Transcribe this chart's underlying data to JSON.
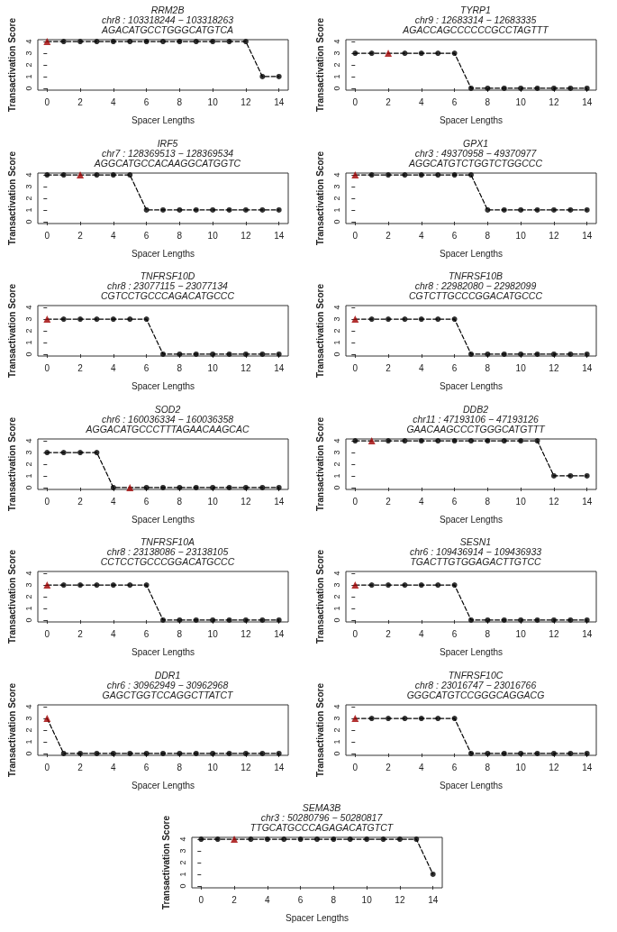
{
  "chart_data": [
    {
      "type": "line",
      "title": "RRM2B",
      "subtitle": "chr8 : 103318244 − 103318263\nAGACATGCCTGGGCATGTCA",
      "xlabel": "Spacer Lengths",
      "ylabel": "Transactivation Score",
      "x": [
        0,
        1,
        2,
        3,
        4,
        5,
        6,
        7,
        8,
        9,
        10,
        11,
        12,
        13,
        14
      ],
      "xlim": [
        -0.56,
        14.56
      ],
      "xticks": [
        0,
        2,
        4,
        6,
        8,
        10,
        12,
        14
      ],
      "ylim": [
        -0.16,
        4.16
      ],
      "yticks": [
        0,
        1,
        2,
        3,
        4
      ],
      "grid": false,
      "series": [
        {
          "type": "line",
          "color": "#000000",
          "line_style": "dashed",
          "marker": "none",
          "values": [
            4,
            4,
            4,
            4,
            4,
            4,
            4,
            4,
            4,
            4,
            4,
            4,
            4,
            1,
            1
          ]
        },
        {
          "type": "scatter",
          "color": "#000000",
          "marker": "circle",
          "x": [
            1,
            2,
            3,
            4,
            5,
            6,
            7,
            8,
            9,
            10,
            11,
            12,
            13,
            14
          ],
          "values": [
            4,
            4,
            4,
            4,
            4,
            4,
            4,
            4,
            4,
            4,
            4,
            4,
            1,
            1
          ]
        },
        {
          "type": "scatter",
          "color": "#a00000",
          "marker": "triangle",
          "x": [
            0
          ],
          "values": [
            4
          ]
        }
      ]
    },
    {
      "type": "line",
      "title": "TYRP1",
      "subtitle": "chr9 : 12683314 − 12683335\nAGACCAGCCCCCCGCCTAGTTT",
      "xlabel": "Spacer Lengths",
      "ylabel": "Transactivation Score",
      "x": [
        0,
        1,
        2,
        3,
        4,
        5,
        6,
        7,
        8,
        9,
        10,
        11,
        12,
        13,
        14
      ],
      "xlim": [
        -0.56,
        14.56
      ],
      "xticks": [
        0,
        2,
        4,
        6,
        8,
        10,
        12,
        14
      ],
      "ylim": [
        -0.16,
        4.16
      ],
      "yticks": [
        0,
        1,
        2,
        3,
        4
      ],
      "grid": false,
      "series": [
        {
          "type": "line",
          "color": "#000000",
          "line_style": "dashed",
          "marker": "none",
          "values": [
            3,
            3,
            3,
            3,
            3,
            3,
            3,
            0,
            0,
            0,
            0,
            0,
            0,
            0,
            0
          ]
        },
        {
          "type": "scatter",
          "color": "#000000",
          "marker": "circle",
          "x": [
            0,
            1,
            3,
            4,
            5,
            6,
            7,
            8,
            9,
            10,
            11,
            12,
            13,
            14
          ],
          "values": [
            3,
            3,
            3,
            3,
            3,
            3,
            0,
            0,
            0,
            0,
            0,
            0,
            0,
            0
          ]
        },
        {
          "type": "scatter",
          "color": "#a00000",
          "marker": "triangle",
          "x": [
            2
          ],
          "values": [
            3
          ]
        }
      ]
    },
    {
      "type": "line",
      "title": "IRF5",
      "subtitle": "chr7 : 128369513 − 128369534\nAGGCATGCCACAAGGCATGGTC",
      "xlabel": "Spacer Lengths",
      "ylabel": "Transactivation Score",
      "x": [
        0,
        1,
        2,
        3,
        4,
        5,
        6,
        7,
        8,
        9,
        10,
        11,
        12,
        13,
        14
      ],
      "xlim": [
        -0.56,
        14.56
      ],
      "xticks": [
        0,
        2,
        4,
        6,
        8,
        10,
        12,
        14
      ],
      "ylim": [
        -0.16,
        4.16
      ],
      "yticks": [
        0,
        1,
        2,
        3,
        4
      ],
      "grid": false,
      "series": [
        {
          "type": "line",
          "color": "#000000",
          "line_style": "dashed",
          "marker": "none",
          "values": [
            4,
            4,
            4,
            4,
            4,
            4,
            1,
            1,
            1,
            1,
            1,
            1,
            1,
            1,
            1
          ]
        },
        {
          "type": "scatter",
          "color": "#000000",
          "marker": "circle",
          "x": [
            0,
            1,
            3,
            4,
            5,
            6,
            7,
            8,
            9,
            10,
            11,
            12,
            13,
            14
          ],
          "values": [
            4,
            4,
            4,
            4,
            4,
            1,
            1,
            1,
            1,
            1,
            1,
            1,
            1,
            1
          ]
        },
        {
          "type": "scatter",
          "color": "#a00000",
          "marker": "triangle",
          "x": [
            2
          ],
          "values": [
            4
          ]
        }
      ]
    },
    {
      "type": "line",
      "title": "GPX1",
      "subtitle": "chr3 : 49370958 − 49370977\nAGGCATGTCTGGTCTGGCCC",
      "xlabel": "Spacer Lengths",
      "ylabel": "Transactivation Score",
      "x": [
        0,
        1,
        2,
        3,
        4,
        5,
        6,
        7,
        8,
        9,
        10,
        11,
        12,
        13,
        14
      ],
      "xlim": [
        -0.56,
        14.56
      ],
      "xticks": [
        0,
        2,
        4,
        6,
        8,
        10,
        12,
        14
      ],
      "ylim": [
        -0.16,
        4.16
      ],
      "yticks": [
        0,
        1,
        2,
        3,
        4
      ],
      "grid": false,
      "series": [
        {
          "type": "line",
          "color": "#000000",
          "line_style": "dashed",
          "marker": "none",
          "values": [
            4,
            4,
            4,
            4,
            4,
            4,
            4,
            4,
            1,
            1,
            1,
            1,
            1,
            1,
            1
          ]
        },
        {
          "type": "scatter",
          "color": "#000000",
          "marker": "circle",
          "x": [
            1,
            2,
            3,
            4,
            5,
            6,
            7,
            8,
            9,
            10,
            11,
            12,
            13,
            14
          ],
          "values": [
            4,
            4,
            4,
            4,
            4,
            4,
            4,
            1,
            1,
            1,
            1,
            1,
            1,
            1
          ]
        },
        {
          "type": "scatter",
          "color": "#a00000",
          "marker": "triangle",
          "x": [
            0
          ],
          "values": [
            4
          ]
        }
      ]
    },
    {
      "type": "line",
      "title": "TNFRSF10D",
      "subtitle": "chr8 : 23077115 − 23077134\nCGTCCTGCCCAGACATGCCC",
      "xlabel": "Spacer Lengths",
      "ylabel": "Transactivation Score",
      "x": [
        0,
        1,
        2,
        3,
        4,
        5,
        6,
        7,
        8,
        9,
        10,
        11,
        12,
        13,
        14
      ],
      "xlim": [
        -0.56,
        14.56
      ],
      "xticks": [
        0,
        2,
        4,
        6,
        8,
        10,
        12,
        14
      ],
      "ylim": [
        -0.16,
        4.16
      ],
      "yticks": [
        0,
        1,
        2,
        3,
        4
      ],
      "grid": false,
      "series": [
        {
          "type": "line",
          "color": "#000000",
          "line_style": "dashed",
          "marker": "none",
          "values": [
            3,
            3,
            3,
            3,
            3,
            3,
            3,
            0,
            0,
            0,
            0,
            0,
            0,
            0,
            0
          ]
        },
        {
          "type": "scatter",
          "color": "#000000",
          "marker": "circle",
          "x": [
            1,
            2,
            3,
            4,
            5,
            6,
            7,
            8,
            9,
            10,
            11,
            12,
            13,
            14
          ],
          "values": [
            3,
            3,
            3,
            3,
            3,
            3,
            0,
            0,
            0,
            0,
            0,
            0,
            0,
            0
          ]
        },
        {
          "type": "scatter",
          "color": "#a00000",
          "marker": "triangle",
          "x": [
            0
          ],
          "values": [
            3
          ]
        }
      ]
    },
    {
      "type": "line",
      "title": "TNFRSF10B",
      "subtitle": "chr8 : 22982080 − 22982099\nCGTCTTGCCCGGACATGCCC",
      "xlabel": "Spacer Lengths",
      "ylabel": "Transactivation Score",
      "x": [
        0,
        1,
        2,
        3,
        4,
        5,
        6,
        7,
        8,
        9,
        10,
        11,
        12,
        13,
        14
      ],
      "xlim": [
        -0.56,
        14.56
      ],
      "xticks": [
        0,
        2,
        4,
        6,
        8,
        10,
        12,
        14
      ],
      "ylim": [
        -0.16,
        4.16
      ],
      "yticks": [
        0,
        1,
        2,
        3,
        4
      ],
      "grid": false,
      "series": [
        {
          "type": "line",
          "color": "#000000",
          "line_style": "dashed",
          "marker": "none",
          "values": [
            3,
            3,
            3,
            3,
            3,
            3,
            3,
            0,
            0,
            0,
            0,
            0,
            0,
            0,
            0
          ]
        },
        {
          "type": "scatter",
          "color": "#000000",
          "marker": "circle",
          "x": [
            1,
            2,
            3,
            4,
            5,
            6,
            7,
            8,
            9,
            10,
            11,
            12,
            13,
            14
          ],
          "values": [
            3,
            3,
            3,
            3,
            3,
            3,
            0,
            0,
            0,
            0,
            0,
            0,
            0,
            0
          ]
        },
        {
          "type": "scatter",
          "color": "#a00000",
          "marker": "triangle",
          "x": [
            0
          ],
          "values": [
            3
          ]
        }
      ]
    },
    {
      "type": "line",
      "title": "SOD2",
      "subtitle": "chr6 : 160036334 − 160036358\nAGGACATGCCCTTTAGAACAAGCAC",
      "xlabel": "Spacer Lengths",
      "ylabel": "Transactivation Score",
      "x": [
        0,
        1,
        2,
        3,
        4,
        5,
        6,
        7,
        8,
        9,
        10,
        11,
        12,
        13,
        14
      ],
      "xlim": [
        -0.56,
        14.56
      ],
      "xticks": [
        0,
        2,
        4,
        6,
        8,
        10,
        12,
        14
      ],
      "ylim": [
        -0.16,
        4.16
      ],
      "yticks": [
        0,
        1,
        2,
        3,
        4
      ],
      "grid": false,
      "series": [
        {
          "type": "line",
          "color": "#000000",
          "line_style": "dashed",
          "marker": "none",
          "values": [
            3,
            3,
            3,
            3,
            0,
            0,
            0,
            0,
            0,
            0,
            0,
            0,
            0,
            0,
            0
          ]
        },
        {
          "type": "scatter",
          "color": "#000000",
          "marker": "circle",
          "x": [
            0,
            1,
            2,
            3,
            4,
            6,
            7,
            8,
            9,
            10,
            11,
            12,
            13,
            14
          ],
          "values": [
            3,
            3,
            3,
            3,
            0,
            0,
            0,
            0,
            0,
            0,
            0,
            0,
            0,
            0
          ]
        },
        {
          "type": "scatter",
          "color": "#a00000",
          "marker": "triangle",
          "x": [
            5
          ],
          "values": [
            0
          ]
        }
      ]
    },
    {
      "type": "line",
      "title": "DDB2",
      "subtitle": "chr11 : 47193106 − 47193126\nGAACAAGCCCTGGGCATGTTT",
      "xlabel": "Spacer Lengths",
      "ylabel": "Transactivation Score",
      "x": [
        0,
        1,
        2,
        3,
        4,
        5,
        6,
        7,
        8,
        9,
        10,
        11,
        12,
        13,
        14
      ],
      "xlim": [
        -0.56,
        14.56
      ],
      "xticks": [
        0,
        2,
        4,
        6,
        8,
        10,
        12,
        14
      ],
      "ylim": [
        -0.16,
        4.16
      ],
      "yticks": [
        0,
        1,
        2,
        3,
        4
      ],
      "grid": false,
      "series": [
        {
          "type": "line",
          "color": "#000000",
          "line_style": "dashed",
          "marker": "none",
          "values": [
            4,
            4,
            4,
            4,
            4,
            4,
            4,
            4,
            4,
            4,
            4,
            4,
            1,
            1,
            1
          ]
        },
        {
          "type": "scatter",
          "color": "#000000",
          "marker": "circle",
          "x": [
            0,
            2,
            3,
            4,
            5,
            6,
            7,
            8,
            9,
            10,
            11,
            12,
            13,
            14
          ],
          "values": [
            4,
            4,
            4,
            4,
            4,
            4,
            4,
            4,
            4,
            4,
            4,
            1,
            1,
            1
          ]
        },
        {
          "type": "scatter",
          "color": "#a00000",
          "marker": "triangle",
          "x": [
            1
          ],
          "values": [
            4
          ]
        }
      ]
    },
    {
      "type": "line",
      "title": "TNFRSF10A",
      "subtitle": "chr8 : 23138086 − 23138105\nCCTCCTGCCCGGACATGCCC",
      "xlabel": "Spacer Lengths",
      "ylabel": "Transactivation Score",
      "x": [
        0,
        1,
        2,
        3,
        4,
        5,
        6,
        7,
        8,
        9,
        10,
        11,
        12,
        13,
        14
      ],
      "xlim": [
        -0.56,
        14.56
      ],
      "xticks": [
        0,
        2,
        4,
        6,
        8,
        10,
        12,
        14
      ],
      "ylim": [
        -0.16,
        4.16
      ],
      "yticks": [
        0,
        1,
        2,
        3,
        4
      ],
      "grid": false,
      "series": [
        {
          "type": "line",
          "color": "#000000",
          "line_style": "dashed",
          "marker": "none",
          "values": [
            3,
            3,
            3,
            3,
            3,
            3,
            3,
            0,
            0,
            0,
            0,
            0,
            0,
            0,
            0
          ]
        },
        {
          "type": "scatter",
          "color": "#000000",
          "marker": "circle",
          "x": [
            1,
            2,
            3,
            4,
            5,
            6,
            7,
            8,
            9,
            10,
            11,
            12,
            13,
            14
          ],
          "values": [
            3,
            3,
            3,
            3,
            3,
            3,
            0,
            0,
            0,
            0,
            0,
            0,
            0,
            0
          ]
        },
        {
          "type": "scatter",
          "color": "#a00000",
          "marker": "triangle",
          "x": [
            0
          ],
          "values": [
            3
          ]
        }
      ]
    },
    {
      "type": "line",
      "title": "SESN1",
      "subtitle": "chr6 : 109436914 − 109436933\nTGACTTGTGGAGACTTGTCC",
      "xlabel": "Spacer Lengths",
      "ylabel": "Transactivation Score",
      "x": [
        0,
        1,
        2,
        3,
        4,
        5,
        6,
        7,
        8,
        9,
        10,
        11,
        12,
        13,
        14
      ],
      "xlim": [
        -0.56,
        14.56
      ],
      "xticks": [
        0,
        2,
        4,
        6,
        8,
        10,
        12,
        14
      ],
      "ylim": [
        -0.16,
        4.16
      ],
      "yticks": [
        0,
        1,
        2,
        3,
        4
      ],
      "grid": false,
      "series": [
        {
          "type": "line",
          "color": "#000000",
          "line_style": "dashed",
          "marker": "none",
          "values": [
            3,
            3,
            3,
            3,
            3,
            3,
            3,
            0,
            0,
            0,
            0,
            0,
            0,
            0,
            0
          ]
        },
        {
          "type": "scatter",
          "color": "#000000",
          "marker": "circle",
          "x": [
            1,
            2,
            3,
            4,
            5,
            6,
            7,
            8,
            9,
            10,
            11,
            12,
            13,
            14
          ],
          "values": [
            3,
            3,
            3,
            3,
            3,
            3,
            0,
            0,
            0,
            0,
            0,
            0,
            0,
            0
          ]
        },
        {
          "type": "scatter",
          "color": "#a00000",
          "marker": "triangle",
          "x": [
            0
          ],
          "values": [
            3
          ]
        }
      ]
    },
    {
      "type": "line",
      "title": "DDR1",
      "subtitle": "chr6 : 30962949 − 30962968\nGAGCTGGTCCAGGCTTATCT",
      "xlabel": "Spacer Lengths",
      "ylabel": "Transactivation Score",
      "x": [
        0,
        1,
        2,
        3,
        4,
        5,
        6,
        7,
        8,
        9,
        10,
        11,
        12,
        13,
        14
      ],
      "xlim": [
        -0.56,
        14.56
      ],
      "xticks": [
        0,
        2,
        4,
        6,
        8,
        10,
        12,
        14
      ],
      "ylim": [
        -0.16,
        4.16
      ],
      "yticks": [
        0,
        1,
        2,
        3,
        4
      ],
      "grid": false,
      "series": [
        {
          "type": "line",
          "color": "#000000",
          "line_style": "dashed",
          "marker": "none",
          "values": [
            3,
            0,
            0,
            0,
            0,
            0,
            0,
            0,
            0,
            0,
            0,
            0,
            0,
            0,
            0
          ]
        },
        {
          "type": "scatter",
          "color": "#000000",
          "marker": "circle",
          "x": [
            1,
            2,
            3,
            4,
            5,
            6,
            7,
            8,
            9,
            10,
            11,
            12,
            13,
            14
          ],
          "values": [
            0,
            0,
            0,
            0,
            0,
            0,
            0,
            0,
            0,
            0,
            0,
            0,
            0,
            0
          ]
        },
        {
          "type": "scatter",
          "color": "#a00000",
          "marker": "triangle",
          "x": [
            0
          ],
          "values": [
            3
          ]
        }
      ]
    },
    {
      "type": "line",
      "title": "TNFRSF10C",
      "subtitle": "chr8 : 23016747 − 23016766\nGGGCATGTCCGGGCAGGACG",
      "xlabel": "Spacer Lengths",
      "ylabel": "Transactivation Score",
      "x": [
        0,
        1,
        2,
        3,
        4,
        5,
        6,
        7,
        8,
        9,
        10,
        11,
        12,
        13,
        14
      ],
      "xlim": [
        -0.56,
        14.56
      ],
      "xticks": [
        0,
        2,
        4,
        6,
        8,
        10,
        12,
        14
      ],
      "ylim": [
        -0.16,
        4.16
      ],
      "yticks": [
        0,
        1,
        2,
        3,
        4
      ],
      "grid": false,
      "series": [
        {
          "type": "line",
          "color": "#000000",
          "line_style": "dashed",
          "marker": "none",
          "values": [
            3,
            3,
            3,
            3,
            3,
            3,
            3,
            0,
            0,
            0,
            0,
            0,
            0,
            0,
            0
          ]
        },
        {
          "type": "scatter",
          "color": "#000000",
          "marker": "circle",
          "x": [
            1,
            2,
            3,
            4,
            5,
            6,
            7,
            8,
            9,
            10,
            11,
            12,
            13,
            14
          ],
          "values": [
            3,
            3,
            3,
            3,
            3,
            3,
            0,
            0,
            0,
            0,
            0,
            0,
            0,
            0
          ]
        },
        {
          "type": "scatter",
          "color": "#a00000",
          "marker": "triangle",
          "x": [
            0
          ],
          "values": [
            3
          ]
        }
      ]
    },
    {
      "type": "line",
      "title": "SEMA3B",
      "subtitle": "chr3 : 50280796 − 50280817\nTTGCATGCCCAGAGACATGTCT",
      "xlabel": "Spacer Lengths",
      "ylabel": "Transactivation Score",
      "x": [
        0,
        1,
        2,
        3,
        4,
        5,
        6,
        7,
        8,
        9,
        10,
        11,
        12,
        13,
        14
      ],
      "xlim": [
        -0.56,
        14.56
      ],
      "xticks": [
        0,
        2,
        4,
        6,
        8,
        10,
        12,
        14
      ],
      "ylim": [
        -0.16,
        4.16
      ],
      "yticks": [
        0,
        1,
        2,
        3,
        4
      ],
      "grid": false,
      "series": [
        {
          "type": "line",
          "color": "#000000",
          "line_style": "dashed",
          "marker": "none",
          "values": [
            4,
            4,
            4,
            4,
            4,
            4,
            4,
            4,
            4,
            4,
            4,
            4,
            4,
            4,
            1
          ]
        },
        {
          "type": "scatter",
          "color": "#000000",
          "marker": "circle",
          "x": [
            0,
            1,
            3,
            4,
            5,
            6,
            7,
            8,
            9,
            10,
            11,
            12,
            13,
            14
          ],
          "values": [
            4,
            4,
            4,
            4,
            4,
            4,
            4,
            4,
            4,
            4,
            4,
            4,
            4,
            1
          ]
        },
        {
          "type": "scatter",
          "color": "#a00000",
          "marker": "triangle",
          "x": [
            2
          ],
          "values": [
            4
          ]
        }
      ]
    }
  ]
}
